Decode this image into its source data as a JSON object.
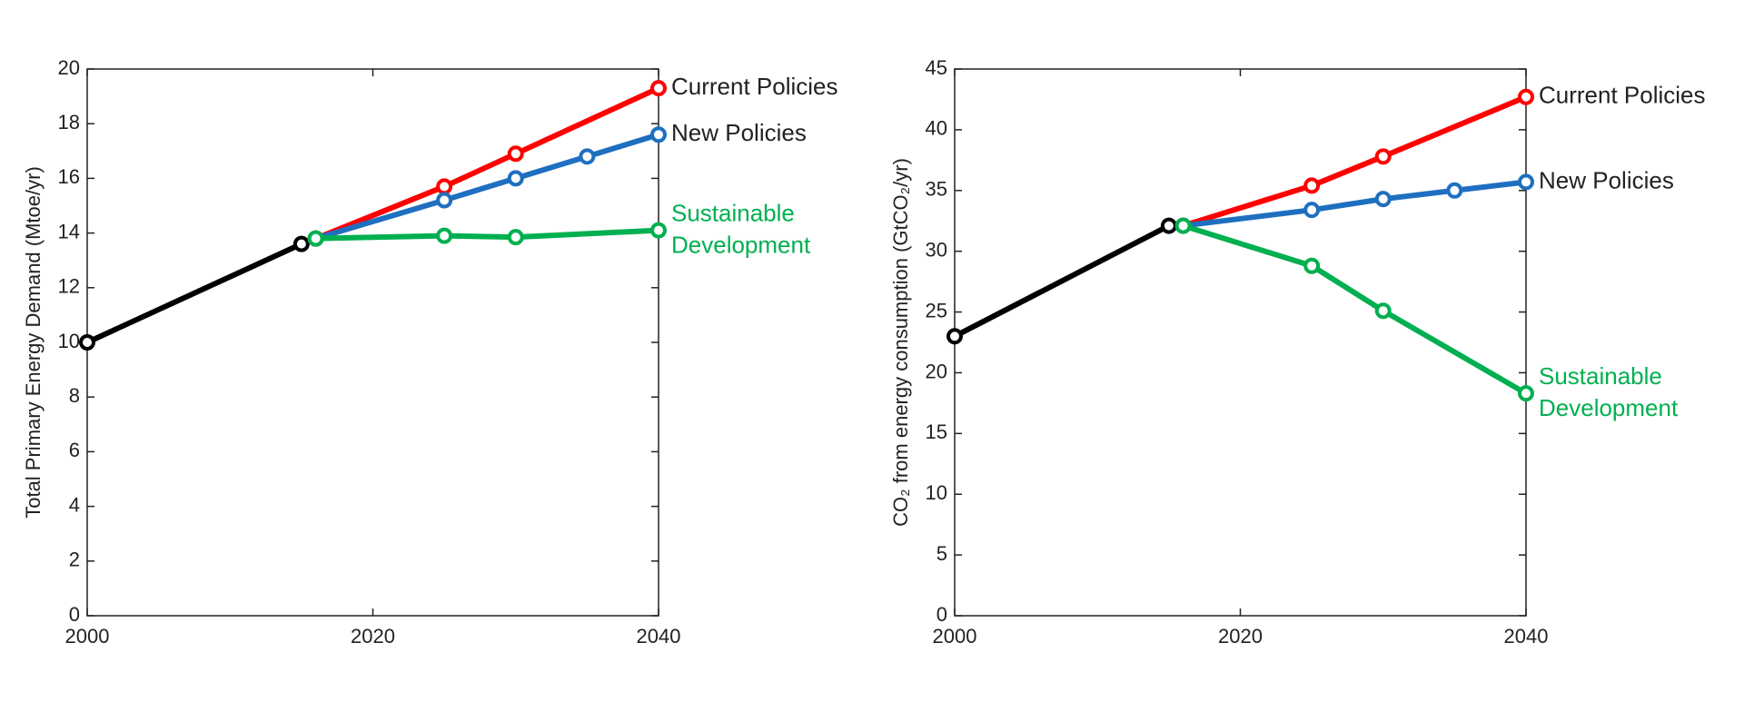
{
  "chart_data": [
    {
      "type": "line",
      "ylabel": "Total Primary Energy Demand (Mtoe/yr)",
      "xlim": [
        2000,
        2040
      ],
      "xticks": [
        2000,
        2020,
        2040
      ],
      "ylim": [
        0,
        20
      ],
      "yticks": [
        0,
        2,
        4,
        6,
        8,
        10,
        12,
        14,
        16,
        18,
        20
      ],
      "series": [
        {
          "color": "#000000",
          "x": [
            2000,
            2015
          ],
          "values": [
            10,
            13.6
          ]
        },
        {
          "name": "Current Policies",
          "color": "#ff0000",
          "x": [
            2016,
            2025,
            2030,
            2040
          ],
          "values": [
            13.8,
            15.7,
            16.9,
            19.3
          ]
        },
        {
          "name": "New Policies",
          "color": "#1f6fc0",
          "x": [
            2016,
            2025,
            2030,
            2035,
            2040
          ],
          "values": [
            13.8,
            15.2,
            16.0,
            16.8,
            17.6
          ]
        },
        {
          "name": "Sustainable Development",
          "color": "#00b050",
          "x": [
            2016,
            2025,
            2030,
            2040
          ],
          "values": [
            13.8,
            13.9,
            13.85,
            14.1
          ]
        }
      ]
    },
    {
      "type": "line",
      "ylabel": "CO₂ from energy consumption (GtCO₂/yr)",
      "xlim": [
        2000,
        2040
      ],
      "xticks": [
        2000,
        2020,
        2040
      ],
      "ylim": [
        0,
        45
      ],
      "yticks": [
        0,
        5,
        10,
        15,
        20,
        25,
        30,
        35,
        40,
        45
      ],
      "series": [
        {
          "color": "#000000",
          "x": [
            2000,
            2015
          ],
          "values": [
            23.0,
            32.1
          ]
        },
        {
          "name": "Current Policies",
          "color": "#ff0000",
          "x": [
            2016,
            2025,
            2030,
            2040
          ],
          "values": [
            32.1,
            35.4,
            37.8,
            42.7
          ]
        },
        {
          "name": "New Policies",
          "color": "#1f6fc0",
          "x": [
            2016,
            2025,
            2030,
            2035,
            2040
          ],
          "values": [
            32.1,
            33.4,
            34.3,
            35.0,
            35.7
          ]
        },
        {
          "name": "Sustainable Development",
          "color": "#00b050",
          "x": [
            2016,
            2025,
            2030,
            2040
          ],
          "values": [
            32.1,
            28.8,
            25.1,
            18.3
          ]
        }
      ]
    }
  ]
}
